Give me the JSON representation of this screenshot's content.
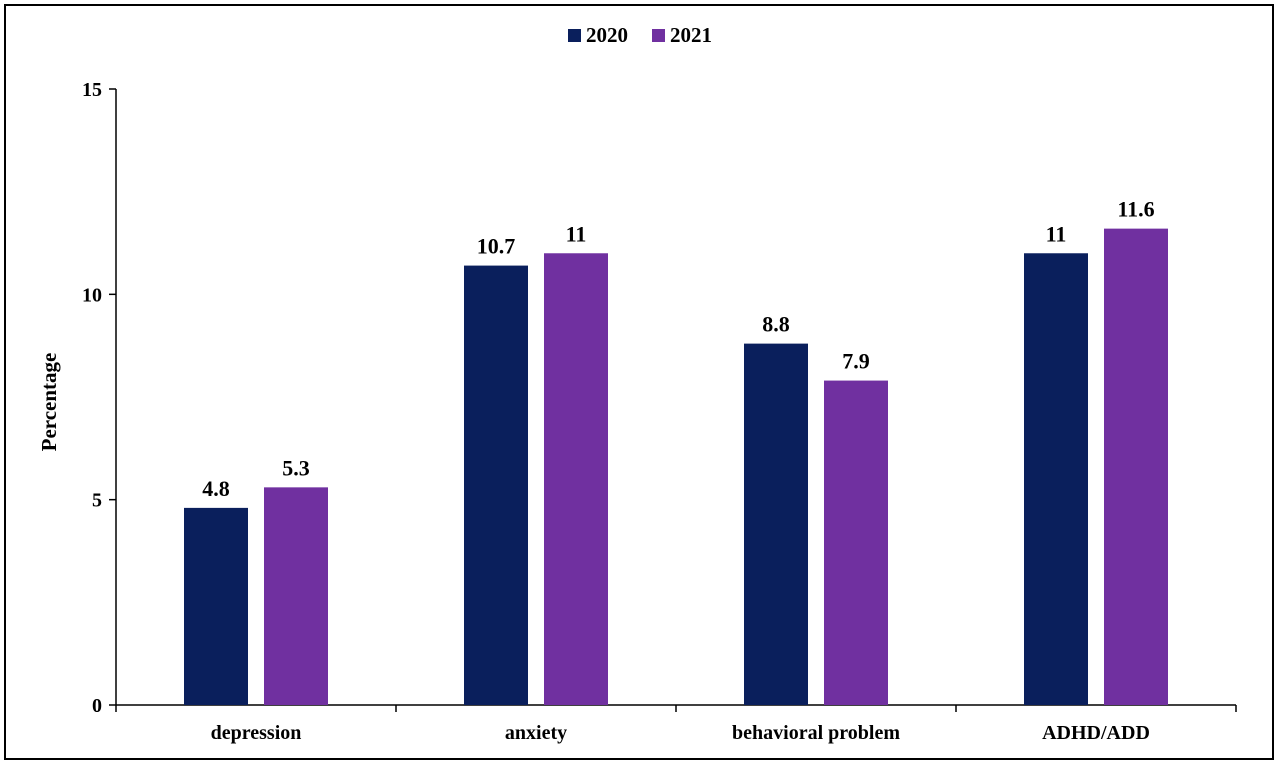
{
  "colors": {
    "series_2020": "#0A1F5C",
    "series_2021": "#7030A0",
    "axis": "#000000"
  },
  "chart_data": {
    "type": "bar",
    "title": "",
    "xlabel": "",
    "ylabel": "Percentage",
    "ylim": [
      0,
      15
    ],
    "yticks": [
      0,
      5,
      10,
      15
    ],
    "grid": false,
    "legend_position": "top-center",
    "categories": [
      "depression",
      "anxiety",
      "behavioral problem",
      "ADHD/ADD"
    ],
    "series": [
      {
        "name": "2020",
        "values": [
          4.8,
          10.7,
          8.8,
          11
        ],
        "labels": [
          "4.8",
          "10.7",
          "8.8",
          "11"
        ]
      },
      {
        "name": "2021",
        "values": [
          5.3,
          11,
          7.9,
          11.6
        ],
        "labels": [
          "5.3",
          "11",
          "7.9",
          "11.6"
        ]
      }
    ]
  }
}
